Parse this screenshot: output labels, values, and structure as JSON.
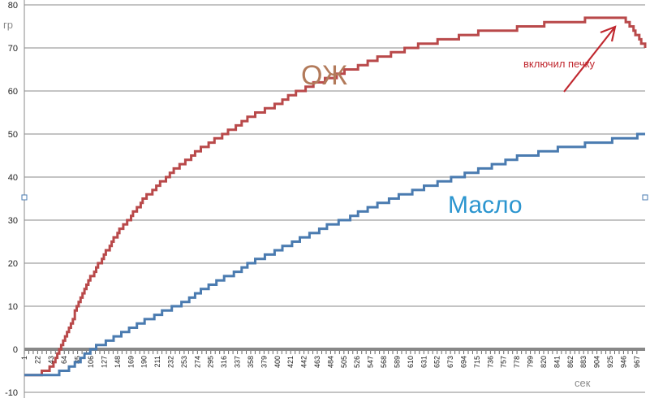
{
  "chart_data": {
    "type": "line",
    "ylabel": "гр",
    "xlabel": "сек",
    "ylim": [
      -10,
      80
    ],
    "yticks": [
      -10,
      0,
      10,
      20,
      30,
      40,
      50,
      60,
      70,
      80
    ],
    "x": [
      1,
      22,
      43,
      64,
      85,
      106,
      127,
      148,
      169,
      190,
      211,
      232,
      253,
      274,
      295,
      316,
      337,
      358,
      379,
      400,
      421,
      442,
      463,
      484,
      505,
      526,
      547,
      568,
      589,
      610,
      631,
      652,
      673,
      694,
      715,
      736,
      757,
      778,
      799,
      820,
      841,
      862,
      883,
      904,
      925,
      946,
      967,
      980
    ],
    "xticks": [
      1,
      22,
      43,
      64,
      85,
      106,
      127,
      148,
      169,
      190,
      211,
      232,
      253,
      274,
      295,
      316,
      337,
      358,
      379,
      400,
      421,
      442,
      463,
      484,
      505,
      526,
      547,
      568,
      589,
      610,
      631,
      652,
      673,
      694,
      715,
      736,
      757,
      778,
      799,
      820,
      841,
      862,
      883,
      904,
      925,
      946,
      967
    ],
    "grid": true,
    "series": [
      {
        "name": "ОЖ",
        "color": "#b9494a",
        "values": [
          -6,
          -6,
          -4,
          3,
          10,
          17,
          22,
          27,
          31,
          35,
          38,
          41,
          43.5,
          46,
          48,
          50,
          52,
          54,
          55.5,
          57,
          59,
          60.5,
          62,
          63,
          64.5,
          65.5,
          67,
          68,
          69,
          70,
          71,
          71.5,
          72,
          73,
          73.5,
          74,
          74,
          74.5,
          75,
          75.5,
          76,
          76,
          76.5,
          77,
          77,
          77,
          73,
          70
        ]
      },
      {
        "name": "Масло",
        "color": "#4a7bb0",
        "values": [
          -6,
          -6,
          -6,
          -5,
          -3,
          0,
          1.5,
          3,
          5,
          6.5,
          8,
          9.5,
          11,
          13,
          15,
          16.5,
          18,
          20,
          21.5,
          23,
          24.5,
          26,
          27.5,
          29,
          30,
          31.5,
          33,
          34,
          35.5,
          36.5,
          37.5,
          38.5,
          39.5,
          40.5,
          41.5,
          42.5,
          43.5,
          44.5,
          45,
          46,
          46.5,
          47,
          47.5,
          48,
          48.5,
          49,
          49.5,
          50
        ]
      }
    ],
    "annotations": {
      "annot_text": "включил печку",
      "annot_color": "#c0282f"
    }
  }
}
